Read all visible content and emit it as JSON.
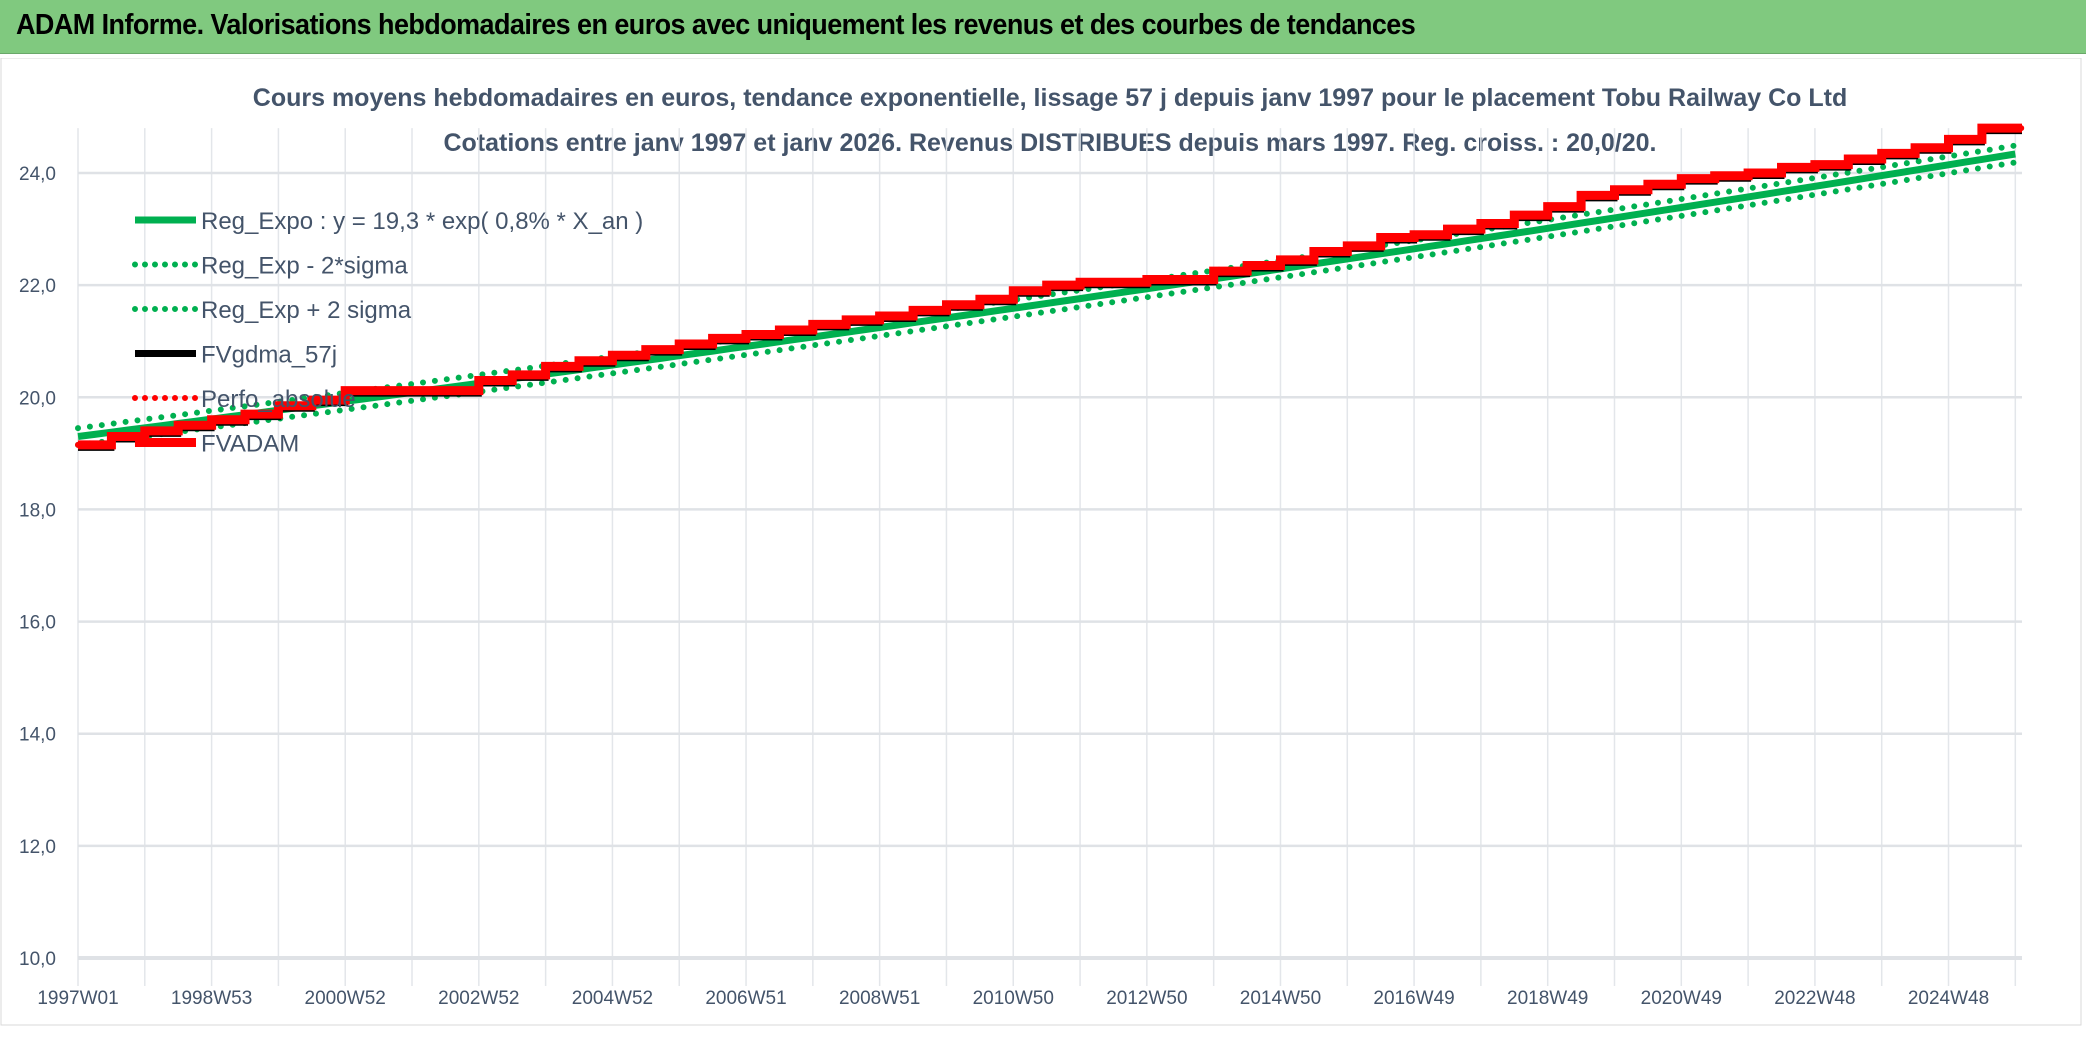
{
  "header": {
    "title": "ADAM Informe. Valorisations hebdomadaires en euros avec uniquement les revenus et des courbes de tendances"
  },
  "chart_data": {
    "type": "line",
    "title": "Cours moyens hebdomadaires en euros, tendance exponentielle, lissage 57 j depuis janv 1997 pour le placement Tobu Railway Co Ltd",
    "subtitle": "Cotations entre janv 1997 et janv 2026. Revenus DISTRIBUES depuis mars 1997. Reg. croiss. : 20,0/20.",
    "xlabel": "",
    "ylabel": "",
    "x_range": [
      1997.0,
      2026.1
    ],
    "ylim": [
      10,
      24.8
    ],
    "y_ticks": [
      "10,0",
      "12,0",
      "14,0",
      "16,0",
      "18,0",
      "20,0",
      "22,0",
      "24,0"
    ],
    "y_tick_values": [
      10,
      12,
      14,
      16,
      18,
      20,
      22,
      24
    ],
    "x_tick_labels": [
      "1997W01",
      "1998W53",
      "2000W52",
      "2002W52",
      "2004W52",
      "2006W51",
      "2008W51",
      "2010W50",
      "2012W50",
      "2014W50",
      "2016W49",
      "2018W49",
      "2020W49",
      "2022W48",
      "2024W48"
    ],
    "x_tick_values": [
      1997,
      1999,
      2001,
      2003,
      2005,
      2007,
      2009,
      2011,
      2013,
      2015,
      2017,
      2019,
      2021,
      2023,
      2025
    ],
    "grid": true,
    "legend_placement": "top-left",
    "regression": {
      "a": 19.3,
      "rate": 0.008,
      "sigma_offset": 0.15
    },
    "series": [
      {
        "name": "Reg_Expo : y = 19,3 * exp( 0,8% *  X_an )",
        "style": "solid",
        "color": "#00b050"
      },
      {
        "name": "Reg_Exp - 2*sigma",
        "style": "dotted",
        "color": "#00b050"
      },
      {
        "name": "Reg_Exp + 2 sigma",
        "style": "dotted",
        "color": "#00b050"
      },
      {
        "name": "FVgdma_57j",
        "style": "solid",
        "color": "#000000"
      },
      {
        "name": "Perfo_absolue",
        "style": "dotted",
        "color": "#ff0000"
      },
      {
        "name": "FVADAM",
        "style": "solid",
        "color": "#ff0000",
        "x": [
          1997,
          1997.5,
          1998,
          1998.5,
          1999,
          1999.5,
          2000,
          2000.5,
          2001,
          2003,
          2003.5,
          2004,
          2004.5,
          2005,
          2005.5,
          2006,
          2006.5,
          2007,
          2007.5,
          2008,
          2008.5,
          2009,
          2009.5,
          2010,
          2010.5,
          2011,
          2011.5,
          2012,
          2013,
          2014,
          2014.5,
          2015,
          2015.5,
          2016,
          2016.5,
          2017,
          2017.5,
          2018,
          2018.5,
          2019,
          2019.5,
          2020,
          2020.5,
          2021,
          2021.5,
          2022,
          2022.5,
          2023,
          2023.5,
          2024,
          2024.5,
          2025,
          2025.5
        ],
        "values": [
          19.15,
          19.3,
          19.4,
          19.5,
          19.6,
          19.7,
          19.85,
          19.95,
          20.12,
          20.3,
          20.4,
          20.55,
          20.65,
          20.75,
          20.85,
          20.95,
          21.05,
          21.12,
          21.2,
          21.3,
          21.38,
          21.45,
          21.55,
          21.65,
          21.75,
          21.9,
          22.0,
          22.05,
          22.1,
          22.25,
          22.35,
          22.45,
          22.6,
          22.7,
          22.85,
          22.9,
          23.0,
          23.1,
          23.25,
          23.4,
          23.6,
          23.7,
          23.8,
          23.9,
          23.95,
          24.0,
          24.1,
          24.15,
          24.25,
          24.35,
          24.45,
          24.6,
          24.8
        ]
      }
    ]
  }
}
